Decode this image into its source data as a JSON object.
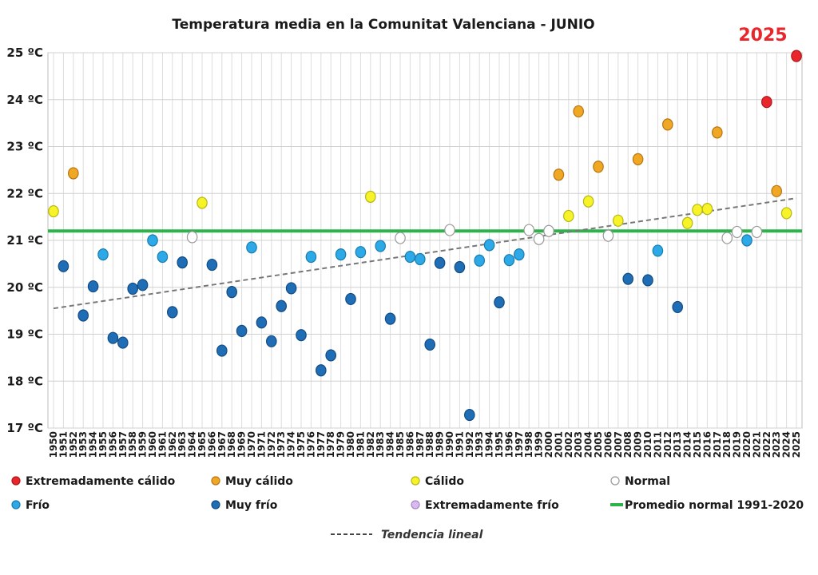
{
  "chart_data": {
    "type": "scatter",
    "title": "Temperatura media en la Comunitat Valenciana - JUNIO",
    "highlight_label": "2025",
    "xlabel": "",
    "ylabel": "",
    "ylim": [
      17,
      25
    ],
    "yticks": [
      {
        "value": 17,
        "label": "17 ºC"
      },
      {
        "value": 18,
        "label": "18 ºC"
      },
      {
        "value": 19,
        "label": "19 ºC"
      },
      {
        "value": 20,
        "label": "20 ºC"
      },
      {
        "value": 21,
        "label": "21 ºC"
      },
      {
        "value": 22,
        "label": "22 ºC"
      },
      {
        "value": 23,
        "label": "23 ºC"
      },
      {
        "value": 24,
        "label": "24 ºC"
      },
      {
        "value": 25,
        "label": "25 ºC"
      }
    ],
    "xlim": [
      1950,
      2025
    ],
    "grid": true,
    "normal_line": {
      "label": "Promedio normal 1991-2020",
      "value": 21.2,
      "color": "#2db34a"
    },
    "trend_line": {
      "label": "Tendencia lineal",
      "start": {
        "x": 1950,
        "y": 19.55
      },
      "end": {
        "x": 2025,
        "y": 21.9
      },
      "color": "#777777"
    },
    "categories": [
      {
        "key": "ext_calido",
        "label": "Extremadamente cálido",
        "color": "#e8262b",
        "stroke": "#b01818"
      },
      {
        "key": "muy_calido",
        "label": "Muy cálido",
        "color": "#f0a724",
        "stroke": "#b77612"
      },
      {
        "key": "calido",
        "label": "Cálido",
        "color": "#f6f428",
        "stroke": "#b9b516"
      },
      {
        "key": "normal",
        "label": "Normal",
        "color": "#ffffff",
        "stroke": "#999999"
      },
      {
        "key": "frio",
        "label": "Frío",
        "color": "#2ca9e6",
        "stroke": "#1a7db0"
      },
      {
        "key": "muy_frio",
        "label": "Muy frío",
        "color": "#1f6db5",
        "stroke": "#134c84"
      },
      {
        "key": "ext_frio",
        "label": "Extremadamente frío",
        "color": "#d9b9ee",
        "stroke": "#a887c2"
      }
    ],
    "points": [
      {
        "x": 1950,
        "y": 21.62,
        "cat": "calido"
      },
      {
        "x": 1951,
        "y": 20.45,
        "cat": "muy_frio"
      },
      {
        "x": 1952,
        "y": 22.43,
        "cat": "muy_calido"
      },
      {
        "x": 1953,
        "y": 19.4,
        "cat": "muy_frio"
      },
      {
        "x": 1954,
        "y": 20.02,
        "cat": "muy_frio"
      },
      {
        "x": 1955,
        "y": 20.7,
        "cat": "frio"
      },
      {
        "x": 1956,
        "y": 18.92,
        "cat": "muy_frio"
      },
      {
        "x": 1957,
        "y": 18.82,
        "cat": "muy_frio"
      },
      {
        "x": 1958,
        "y": 19.97,
        "cat": "muy_frio"
      },
      {
        "x": 1959,
        "y": 20.05,
        "cat": "muy_frio"
      },
      {
        "x": 1960,
        "y": 21.0,
        "cat": "frio"
      },
      {
        "x": 1961,
        "y": 20.65,
        "cat": "frio"
      },
      {
        "x": 1962,
        "y": 19.47,
        "cat": "muy_frio"
      },
      {
        "x": 1963,
        "y": 20.53,
        "cat": "muy_frio"
      },
      {
        "x": 1964,
        "y": 21.07,
        "cat": "normal"
      },
      {
        "x": 1965,
        "y": 21.8,
        "cat": "calido"
      },
      {
        "x": 1966,
        "y": 20.48,
        "cat": "muy_frio"
      },
      {
        "x": 1967,
        "y": 18.65,
        "cat": "muy_frio"
      },
      {
        "x": 1968,
        "y": 19.9,
        "cat": "muy_frio"
      },
      {
        "x": 1969,
        "y": 19.07,
        "cat": "muy_frio"
      },
      {
        "x": 1970,
        "y": 20.85,
        "cat": "frio"
      },
      {
        "x": 1971,
        "y": 19.25,
        "cat": "muy_frio"
      },
      {
        "x": 1972,
        "y": 18.85,
        "cat": "muy_frio"
      },
      {
        "x": 1973,
        "y": 19.6,
        "cat": "muy_frio"
      },
      {
        "x": 1974,
        "y": 19.98,
        "cat": "muy_frio"
      },
      {
        "x": 1975,
        "y": 18.98,
        "cat": "muy_frio"
      },
      {
        "x": 1976,
        "y": 20.65,
        "cat": "frio"
      },
      {
        "x": 1977,
        "y": 18.23,
        "cat": "muy_frio"
      },
      {
        "x": 1978,
        "y": 18.55,
        "cat": "muy_frio"
      },
      {
        "x": 1979,
        "y": 20.7,
        "cat": "frio"
      },
      {
        "x": 1980,
        "y": 19.75,
        "cat": "muy_frio"
      },
      {
        "x": 1981,
        "y": 20.75,
        "cat": "frio"
      },
      {
        "x": 1982,
        "y": 21.93,
        "cat": "calido"
      },
      {
        "x": 1983,
        "y": 20.88,
        "cat": "frio"
      },
      {
        "x": 1984,
        "y": 19.33,
        "cat": "muy_frio"
      },
      {
        "x": 1985,
        "y": 21.05,
        "cat": "normal"
      },
      {
        "x": 1986,
        "y": 20.65,
        "cat": "frio"
      },
      {
        "x": 1987,
        "y": 20.6,
        "cat": "frio"
      },
      {
        "x": 1988,
        "y": 18.78,
        "cat": "muy_frio"
      },
      {
        "x": 1989,
        "y": 20.52,
        "cat": "muy_frio"
      },
      {
        "x": 1990,
        "y": 21.22,
        "cat": "normal"
      },
      {
        "x": 1991,
        "y": 20.43,
        "cat": "muy_frio"
      },
      {
        "x": 1992,
        "y": 17.28,
        "cat": "muy_frio"
      },
      {
        "x": 1993,
        "y": 20.57,
        "cat": "frio"
      },
      {
        "x": 1994,
        "y": 20.9,
        "cat": "frio"
      },
      {
        "x": 1995,
        "y": 19.68,
        "cat": "muy_frio"
      },
      {
        "x": 1996,
        "y": 20.58,
        "cat": "frio"
      },
      {
        "x": 1997,
        "y": 20.7,
        "cat": "frio"
      },
      {
        "x": 1998,
        "y": 21.22,
        "cat": "normal"
      },
      {
        "x": 1999,
        "y": 21.03,
        "cat": "normal"
      },
      {
        "x": 2000,
        "y": 21.2,
        "cat": "normal"
      },
      {
        "x": 2001,
        "y": 22.4,
        "cat": "muy_calido"
      },
      {
        "x": 2002,
        "y": 21.52,
        "cat": "calido"
      },
      {
        "x": 2003,
        "y": 23.75,
        "cat": "muy_calido"
      },
      {
        "x": 2004,
        "y": 21.83,
        "cat": "calido"
      },
      {
        "x": 2005,
        "y": 22.57,
        "cat": "muy_calido"
      },
      {
        "x": 2006,
        "y": 21.1,
        "cat": "normal"
      },
      {
        "x": 2007,
        "y": 21.42,
        "cat": "calido"
      },
      {
        "x": 2008,
        "y": 20.18,
        "cat": "muy_frio"
      },
      {
        "x": 2009,
        "y": 22.73,
        "cat": "muy_calido"
      },
      {
        "x": 2010,
        "y": 20.15,
        "cat": "muy_frio"
      },
      {
        "x": 2011,
        "y": 20.78,
        "cat": "frio"
      },
      {
        "x": 2012,
        "y": 23.47,
        "cat": "muy_calido"
      },
      {
        "x": 2013,
        "y": 19.58,
        "cat": "muy_frio"
      },
      {
        "x": 2014,
        "y": 21.37,
        "cat": "calido"
      },
      {
        "x": 2015,
        "y": 21.65,
        "cat": "calido"
      },
      {
        "x": 2016,
        "y": 21.67,
        "cat": "calido"
      },
      {
        "x": 2017,
        "y": 23.3,
        "cat": "muy_calido"
      },
      {
        "x": 2018,
        "y": 21.05,
        "cat": "normal"
      },
      {
        "x": 2019,
        "y": 21.18,
        "cat": "normal"
      },
      {
        "x": 2020,
        "y": 21.0,
        "cat": "frio"
      },
      {
        "x": 2021,
        "y": 21.18,
        "cat": "normal"
      },
      {
        "x": 2022,
        "y": 23.95,
        "cat": "ext_calido"
      },
      {
        "x": 2023,
        "y": 22.05,
        "cat": "muy_calido"
      },
      {
        "x": 2024,
        "y": 21.58,
        "cat": "calido"
      },
      {
        "x": 2025,
        "y": 24.93,
        "cat": "ext_calido"
      }
    ],
    "legend_position": "bottom"
  }
}
